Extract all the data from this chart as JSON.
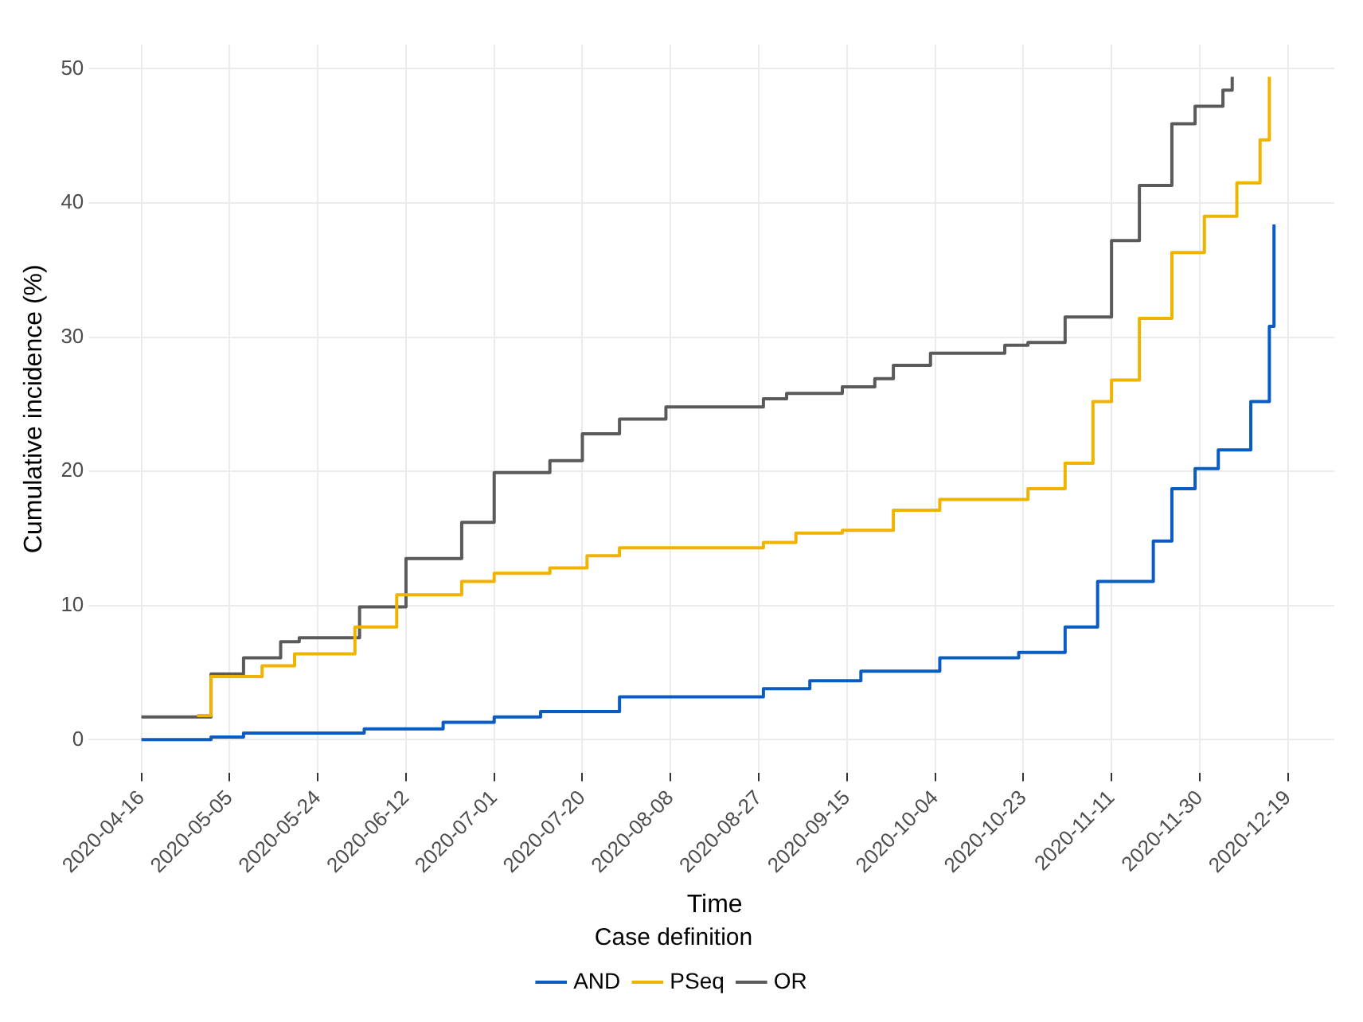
{
  "chart_data": {
    "type": "step",
    "xlabel": "Time",
    "ylabel": "Cumulative incidence (%)",
    "legend_title": "Case definition",
    "legend": "bottom",
    "grid": true,
    "marker": "none",
    "xlim": [
      "2020-04-06",
      "2020-12-29"
    ],
    "xticks": [
      "2020-04-16",
      "2020-05-05",
      "2020-05-24",
      "2020-06-12",
      "2020-07-01",
      "2020-07-20",
      "2020-08-08",
      "2020-08-27",
      "2020-09-15",
      "2020-10-04",
      "2020-10-23",
      "2020-11-11",
      "2020-11-30",
      "2020-12-19"
    ],
    "ylim": [
      -2.5,
      51.8
    ],
    "yticks": [
      0,
      10,
      20,
      30,
      40,
      50
    ],
    "series": [
      {
        "name": "AND",
        "color": "#0a5cc2",
        "x": [
          "2020-04-16",
          "2020-05-01",
          "2020-05-08",
          "2020-05-31",
          "2020-06-03",
          "2020-06-20",
          "2020-07-01",
          "2020-07-11",
          "2020-07-28",
          "2020-08-28",
          "2020-09-07",
          "2020-09-18",
          "2020-10-05",
          "2020-10-22",
          "2020-11-01",
          "2020-11-08",
          "2020-11-17",
          "2020-11-20",
          "2020-11-24",
          "2020-11-29",
          "2020-12-04",
          "2020-12-11",
          "2020-12-15",
          "2020-12-16"
        ],
        "values": [
          0,
          0.2,
          0.5,
          0.5,
          0.8,
          1.3,
          1.7,
          2.1,
          3.2,
          3.8,
          4.4,
          5.1,
          6.1,
          6.5,
          8.4,
          11.8,
          11.8,
          14.8,
          18.7,
          20.2,
          21.6,
          25.2,
          30.8,
          38.4
        ]
      },
      {
        "name": "PSeq",
        "color": "#f0b400",
        "x": [
          "2020-04-28",
          "2020-05-01",
          "2020-05-12",
          "2020-05-19",
          "2020-05-26",
          "2020-06-01",
          "2020-06-10",
          "2020-06-24",
          "2020-07-01",
          "2020-07-13",
          "2020-07-21",
          "2020-07-28",
          "2020-08-28",
          "2020-09-04",
          "2020-09-14",
          "2020-09-25",
          "2020-10-05",
          "2020-10-24",
          "2020-11-01",
          "2020-11-07",
          "2020-11-11",
          "2020-11-17",
          "2020-11-24",
          "2020-12-01",
          "2020-12-08",
          "2020-12-13",
          "2020-12-15"
        ],
        "values": [
          1.8,
          4.7,
          5.5,
          6.4,
          6.4,
          8.4,
          10.8,
          11.8,
          12.4,
          12.8,
          13.7,
          14.3,
          14.7,
          15.4,
          15.6,
          17.1,
          17.9,
          18.7,
          20.6,
          25.2,
          26.8,
          31.4,
          36.3,
          39.0,
          41.5,
          44.7,
          49.4
        ]
      },
      {
        "name": "OR",
        "color": "#5a5a5a",
        "x": [
          "2020-04-16",
          "2020-04-27",
          "2020-05-01",
          "2020-05-08",
          "2020-05-16",
          "2020-05-20",
          "2020-05-26",
          "2020-06-02",
          "2020-06-12",
          "2020-06-24",
          "2020-07-01",
          "2020-07-13",
          "2020-07-20",
          "2020-07-28",
          "2020-08-07",
          "2020-08-28",
          "2020-09-02",
          "2020-09-14",
          "2020-09-21",
          "2020-09-25",
          "2020-10-03",
          "2020-10-19",
          "2020-10-24",
          "2020-11-01",
          "2020-11-11",
          "2020-11-17",
          "2020-11-24",
          "2020-11-29",
          "2020-12-05",
          "2020-12-07"
        ],
        "values": [
          1.7,
          1.7,
          4.9,
          6.1,
          7.3,
          7.6,
          7.6,
          9.9,
          13.5,
          16.2,
          19.9,
          20.8,
          22.8,
          23.9,
          24.8,
          25.4,
          25.8,
          26.3,
          26.9,
          27.9,
          28.8,
          29.4,
          29.6,
          31.5,
          37.2,
          41.3,
          45.9,
          47.2,
          48.4,
          49.4
        ]
      }
    ]
  }
}
